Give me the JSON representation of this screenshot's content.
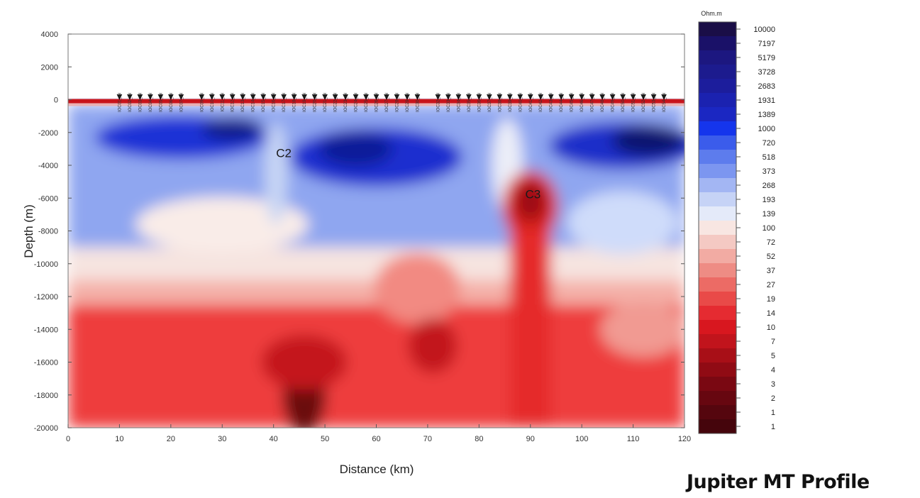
{
  "slide": {
    "title": "Jupiter MT Profile"
  },
  "chart_data": {
    "type": "heatmap",
    "title": "",
    "xlabel": "Distance (km)",
    "ylabel": "Depth (m)",
    "xlim": [
      0,
      120
    ],
    "ylim": [
      -20000,
      4000
    ],
    "x_ticks": [
      "0",
      "10",
      "20",
      "30",
      "40",
      "50",
      "60",
      "70",
      "80",
      "90",
      "100",
      "110",
      "120"
    ],
    "y_ticks": [
      "4000",
      "2000",
      "0",
      "-2000",
      "-4000",
      "-6000",
      "-8000",
      "-10000",
      "-12000",
      "-14000",
      "-16000",
      "-18000",
      "-20000"
    ],
    "grid": false,
    "colorbar": {
      "unit": "Ohm.m",
      "position": "right",
      "levels": [
        "10000",
        "7197",
        "5179",
        "3728",
        "2683",
        "1931",
        "1389",
        "1000",
        "720",
        "518",
        "373",
        "268",
        "193",
        "139",
        "100",
        "72",
        "52",
        "37",
        "27",
        "19",
        "14",
        "10",
        "7",
        "5",
        "4",
        "3",
        "2",
        "1",
        "1"
      ]
    },
    "stations": [
      "IOC01_tbl",
      "IOC02_tbl",
      "IOC03_tbl",
      "IOC04_tbl",
      "IOC05_tbl",
      "IOC06_tbl",
      "IOC07_tbl",
      "IOC09_tbl",
      "IOC10_tbl",
      "IOC11_tbl",
      "IOC12_tbl",
      "IOC13_tbl",
      "IOC14_tbl",
      "IOC15_tbl",
      "IOC16_tbl",
      "IOC17_tbl",
      "IOC18_tbl",
      "IOC19_tbl",
      "IOC20_tbl",
      "IOC21_tbl",
      "IOC22_tbl",
      "IOC23_tbl",
      "IOC24_tbl",
      "IOC25_tbl",
      "IOC26_tbl",
      "IOC27_tbl",
      "IOC28_tbl",
      "IOC29_tbl",
      "IOC30_tbl",
      "IOC32_tbl",
      "IOC33_tbl",
      "IOC34_tbl",
      "IOC35_tbl",
      "IOC36_tbl",
      "IOC37_tbl",
      "IOC38_tbl",
      "IOC39_tbl",
      "IOC40_tbl",
      "IOC41_tbl",
      "IOC42_tbl",
      "IOC43_tbl",
      "IOC44_tbl",
      "IOC45_tbl",
      "IOC46_tbl",
      "IOC47_tbl",
      "IOC48_tbl",
      "IOC49_tbl",
      "IOC50_tbl",
      "IOC51_tbl",
      "IOC52_tbl",
      "IOC53_tbl",
      "IOC54_tbl"
    ],
    "station_x_km": [
      10,
      12,
      14,
      16,
      18,
      20,
      22,
      26,
      28,
      30,
      32,
      34,
      36,
      38,
      40,
      42,
      44,
      46,
      48,
      50,
      52,
      54,
      56,
      58,
      60,
      62,
      64,
      66,
      68,
      72,
      74,
      76,
      78,
      80,
      82,
      84,
      86,
      88,
      90,
      92,
      94,
      96,
      98,
      100,
      102,
      104,
      106,
      108,
      110,
      112,
      114,
      116
    ],
    "annotations": [
      {
        "text": "C2",
        "x": 42,
        "y": -3500
      },
      {
        "text": "C3",
        "x": 90.5,
        "y": -6000
      }
    ]
  }
}
